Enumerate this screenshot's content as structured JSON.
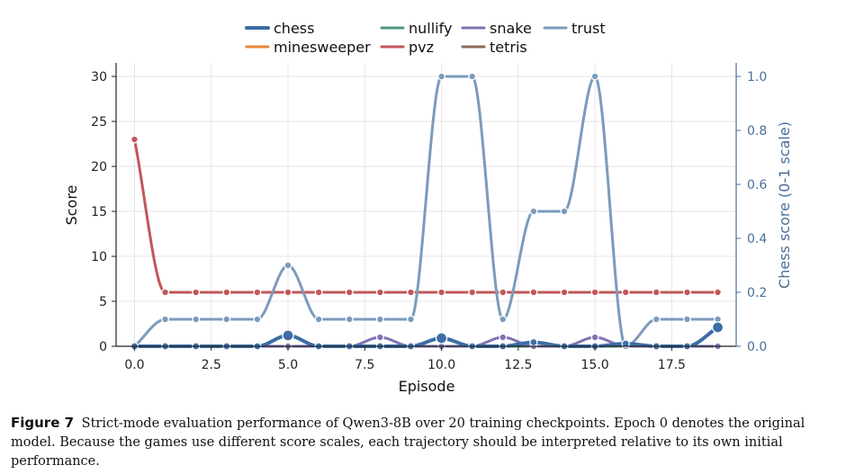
{
  "chart_data": {
    "type": "line",
    "xlabel": "Episode",
    "ylabel": "Score",
    "y2label": "Chess score (0-1 scale)",
    "xlim": [
      -0.6,
      19.6
    ],
    "ylim": [
      0,
      31.5
    ],
    "y2lim": [
      0,
      1.05
    ],
    "xticks": [
      "0.0",
      "2.5",
      "5.0",
      "7.5",
      "10.0",
      "12.5",
      "15.0",
      "17.5"
    ],
    "yticks": [
      "0",
      "5",
      "10",
      "15",
      "20",
      "25",
      "30"
    ],
    "y2ticks": [
      "0.0",
      "0.2",
      "0.4",
      "0.6",
      "0.8",
      "1.0"
    ],
    "grid": true,
    "legend_position": "top-center",
    "x": [
      0,
      1,
      2,
      3,
      4,
      5,
      6,
      7,
      8,
      9,
      10,
      11,
      12,
      13,
      14,
      15,
      16,
      17,
      18,
      19
    ],
    "series": [
      {
        "name": "chess",
        "axis": "right",
        "color": "#3b6ea5",
        "values": [
          0,
          0,
          0,
          0,
          0,
          0.04,
          0,
          0,
          0,
          0,
          0.03,
          0,
          0,
          0.015,
          0,
          0,
          0.01,
          0,
          0,
          0.07
        ]
      },
      {
        "name": "nullify",
        "axis": "left",
        "color": "#4c9a7a",
        "values": [
          0,
          0,
          0,
          0,
          0,
          0,
          0,
          0,
          0,
          0,
          0,
          0,
          0,
          0,
          0,
          0,
          0,
          0,
          0,
          0
        ]
      },
      {
        "name": "snake",
        "axis": "left",
        "color": "#8272b3",
        "values": [
          0,
          0,
          0,
          0,
          0,
          0,
          0,
          0,
          1,
          0,
          0,
          0,
          1,
          0,
          0,
          1,
          0,
          0,
          0,
          0
        ]
      },
      {
        "name": "trust",
        "axis": "left",
        "color": "#7b9bbd",
        "values": [
          0,
          3,
          3,
          3,
          3,
          9,
          3,
          3,
          3,
          3,
          30,
          30,
          3,
          15,
          15,
          30,
          0,
          3,
          3,
          3
        ]
      },
      {
        "name": "minesweeper",
        "axis": "left",
        "color": "#e8883a",
        "values": [
          0,
          0,
          0,
          0,
          0,
          0,
          0,
          0,
          0,
          0,
          0,
          0,
          0,
          0,
          0,
          0,
          0,
          0,
          0,
          0
        ]
      },
      {
        "name": "pvz",
        "axis": "left",
        "color": "#c0575a",
        "values": [
          23,
          6,
          6,
          6,
          6,
          6,
          6,
          6,
          6,
          6,
          6,
          6,
          6,
          6,
          6,
          6,
          6,
          6,
          6,
          6
        ]
      },
      {
        "name": "tetris",
        "axis": "left",
        "color": "#8b6a55",
        "values": [
          0,
          0,
          0,
          0,
          0,
          0,
          0,
          0,
          0,
          0,
          0,
          0,
          0,
          0,
          0,
          0,
          0,
          0,
          0,
          0
        ]
      }
    ],
    "legend_order": [
      "chess",
      "nullify",
      "snake",
      "trust",
      "minesweeper",
      "pvz",
      "tetris"
    ]
  },
  "caption": {
    "label": "Figure 7",
    "text": "Strict-mode evaluation performance of Qwen3-8B over 20 training checkpoints. Epoch 0 denotes the original model. Because the games use different score scales, each trajectory should be interpreted relative to its own initial performance."
  }
}
